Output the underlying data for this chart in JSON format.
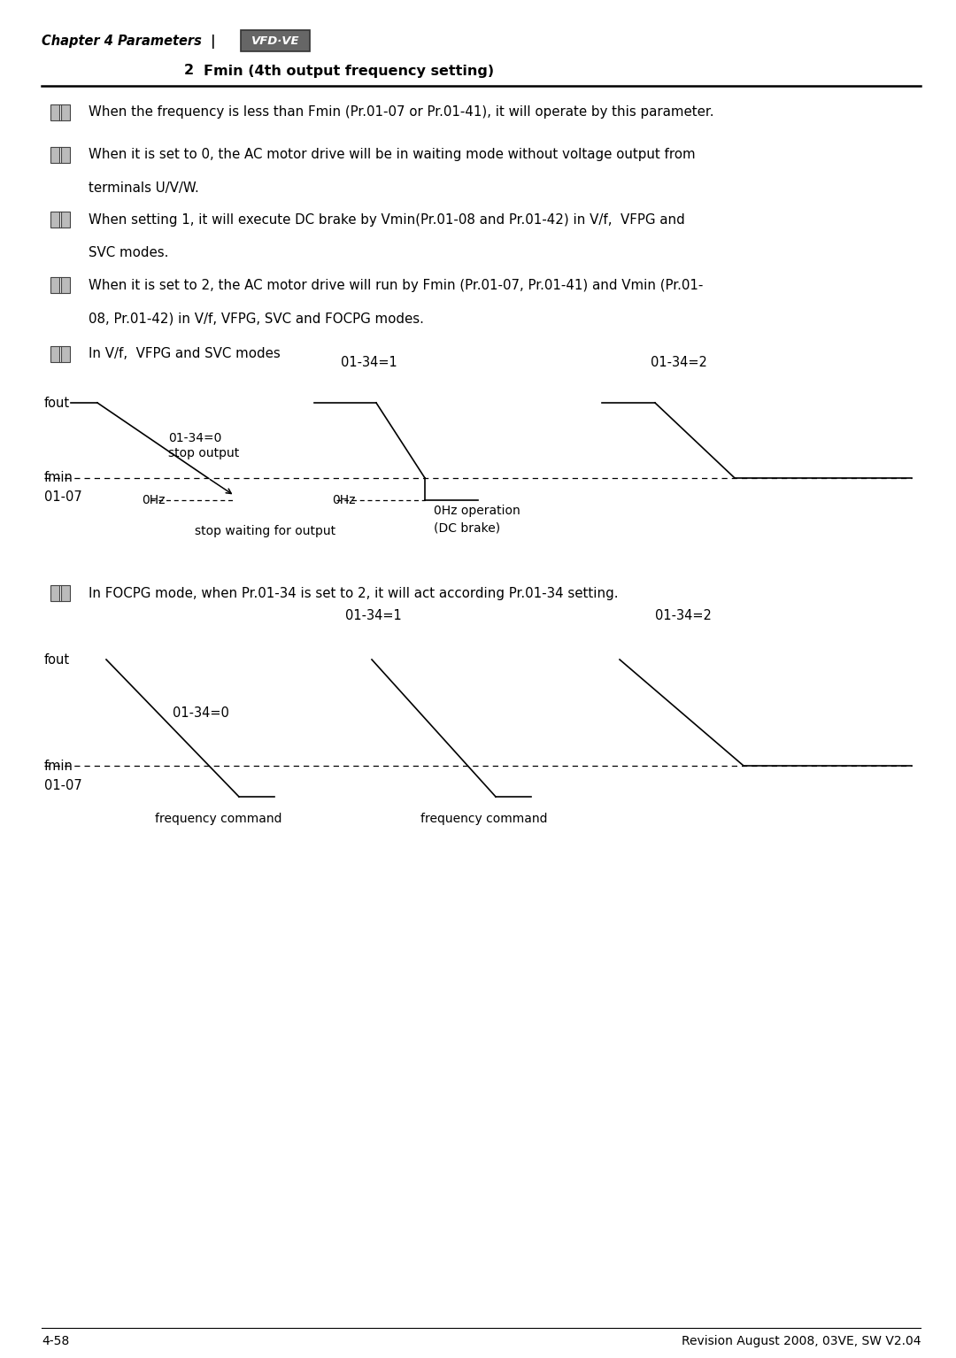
{
  "page_bg": "#ffffff",
  "header_italic_bold": "Chapter 4 Parameters  |",
  "header_logo_text": "VFD·VE",
  "section_number": "2",
  "section_title": "Fmin (4th output frequency setting)",
  "bullet1": "When the frequency is less than Fmin (Pr.01-07 or Pr.01-41), it will operate by this parameter.",
  "bullet2a": "When it is set to 0, the AC motor drive will be in waiting mode without voltage output from",
  "bullet2b": "terminals U/V/W.",
  "bullet3a": "When setting 1, it will execute DC brake by Vmin(Pr.01-08 and Pr.01-42) in V/f,  VFPG and",
  "bullet3b": "SVC modes.",
  "bullet4a": "When it is set to 2, the AC motor drive will run by Fmin (Pr.01-07, Pr.01-41) and Vmin (Pr.01-",
  "bullet4b": "08, Pr.01-42) in V/f, VFPG, SVC and FOCPG modes.",
  "bullet5": "In V/f,  VFPG and SVC modes",
  "bullet6": "In FOCPG mode, when Pr.01-34 is set to 2, it will act according Pr.01-34 setting.",
  "footer_left": "4-58",
  "footer_right": "Revision August 2008, 03VE, SW V2.04"
}
